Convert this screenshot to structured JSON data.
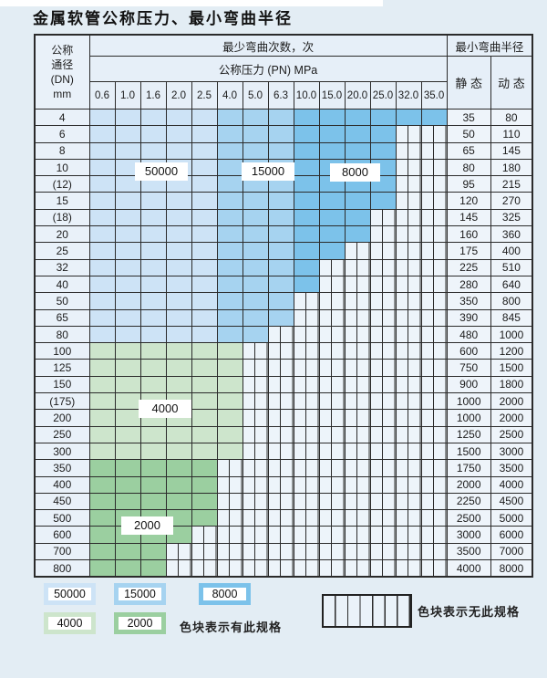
{
  "colors": {
    "cycles_50000": "#cde3f6",
    "cycles_15000": "#a6d3f0",
    "cycles_8000": "#7cc2ea",
    "cycles_4000": "#cde5cc",
    "cycles_2000": "#9bcfa0",
    "no_spec_bg": "#edf4fa",
    "grid_line": "#2b2b2b",
    "page_bg": "#e3edf4"
  },
  "chart_data": {
    "type": "table",
    "title": "金属软管公称压力、最小弯曲半径",
    "header": {
      "dn_lines": [
        "公称",
        "通径",
        "(DN)",
        "mm"
      ],
      "bend_cycles_label": "最少弯曲次数，次",
      "pressure_label": "公称压力 (PN) MPa",
      "radius_label": "最小弯曲半径",
      "static_label": "静 态",
      "dynamic_label": "动 态",
      "pressure_columns": [
        "0.6",
        "1.0",
        "1.6",
        "2.0",
        "2.5",
        "4.0",
        "5.0",
        "6.3",
        "10.0",
        "15.0",
        "20.0",
        "25.0",
        "32.0",
        "35.0"
      ]
    },
    "overlay_labels": [
      "50000",
      "15000",
      "8000",
      "4000",
      "2000"
    ],
    "rows": [
      {
        "dn": "4",
        "cycles": [
          50000,
          50000,
          50000,
          50000,
          50000,
          15000,
          15000,
          15000,
          8000,
          8000,
          8000,
          8000,
          8000,
          8000
        ],
        "static": "35",
        "dynamic": "80"
      },
      {
        "dn": "6",
        "cycles": [
          50000,
          50000,
          50000,
          50000,
          50000,
          15000,
          15000,
          15000,
          8000,
          8000,
          8000,
          8000,
          null,
          null
        ],
        "static": "50",
        "dynamic": "110"
      },
      {
        "dn": "8",
        "cycles": [
          50000,
          50000,
          50000,
          50000,
          50000,
          15000,
          15000,
          15000,
          8000,
          8000,
          8000,
          8000,
          null,
          null
        ],
        "static": "65",
        "dynamic": "145"
      },
      {
        "dn": "10",
        "cycles": [
          50000,
          50000,
          50000,
          50000,
          50000,
          15000,
          15000,
          15000,
          8000,
          8000,
          8000,
          8000,
          null,
          null
        ],
        "static": "80",
        "dynamic": "180"
      },
      {
        "dn": "(12)",
        "cycles": [
          50000,
          50000,
          50000,
          50000,
          50000,
          15000,
          15000,
          15000,
          8000,
          8000,
          8000,
          8000,
          null,
          null
        ],
        "static": "95",
        "dynamic": "215"
      },
      {
        "dn": "15",
        "cycles": [
          50000,
          50000,
          50000,
          50000,
          50000,
          15000,
          15000,
          15000,
          8000,
          8000,
          8000,
          8000,
          null,
          null
        ],
        "static": "120",
        "dynamic": "270"
      },
      {
        "dn": "(18)",
        "cycles": [
          50000,
          50000,
          50000,
          50000,
          50000,
          15000,
          15000,
          15000,
          8000,
          8000,
          8000,
          null,
          null,
          null
        ],
        "static": "145",
        "dynamic": "325"
      },
      {
        "dn": "20",
        "cycles": [
          50000,
          50000,
          50000,
          50000,
          50000,
          15000,
          15000,
          15000,
          8000,
          8000,
          8000,
          null,
          null,
          null
        ],
        "static": "160",
        "dynamic": "360"
      },
      {
        "dn": "25",
        "cycles": [
          50000,
          50000,
          50000,
          50000,
          50000,
          15000,
          15000,
          15000,
          8000,
          8000,
          null,
          null,
          null,
          null
        ],
        "static": "175",
        "dynamic": "400"
      },
      {
        "dn": "32",
        "cycles": [
          50000,
          50000,
          50000,
          50000,
          50000,
          15000,
          15000,
          15000,
          8000,
          null,
          null,
          null,
          null,
          null
        ],
        "static": "225",
        "dynamic": "510"
      },
      {
        "dn": "40",
        "cycles": [
          50000,
          50000,
          50000,
          50000,
          50000,
          15000,
          15000,
          15000,
          8000,
          null,
          null,
          null,
          null,
          null
        ],
        "static": "280",
        "dynamic": "640"
      },
      {
        "dn": "50",
        "cycles": [
          50000,
          50000,
          50000,
          50000,
          50000,
          15000,
          15000,
          15000,
          null,
          null,
          null,
          null,
          null,
          null
        ],
        "static": "350",
        "dynamic": "800"
      },
      {
        "dn": "65",
        "cycles": [
          50000,
          50000,
          50000,
          50000,
          50000,
          15000,
          15000,
          15000,
          null,
          null,
          null,
          null,
          null,
          null
        ],
        "static": "390",
        "dynamic": "845"
      },
      {
        "dn": "80",
        "cycles": [
          50000,
          50000,
          50000,
          50000,
          50000,
          15000,
          15000,
          null,
          null,
          null,
          null,
          null,
          null,
          null
        ],
        "static": "480",
        "dynamic": "1000"
      },
      {
        "dn": "100",
        "cycles": [
          4000,
          4000,
          4000,
          4000,
          4000,
          4000,
          null,
          null,
          null,
          null,
          null,
          null,
          null,
          null
        ],
        "static": "600",
        "dynamic": "1200"
      },
      {
        "dn": "125",
        "cycles": [
          4000,
          4000,
          4000,
          4000,
          4000,
          4000,
          null,
          null,
          null,
          null,
          null,
          null,
          null,
          null
        ],
        "static": "750",
        "dynamic": "1500"
      },
      {
        "dn": "150",
        "cycles": [
          4000,
          4000,
          4000,
          4000,
          4000,
          4000,
          null,
          null,
          null,
          null,
          null,
          null,
          null,
          null
        ],
        "static": "900",
        "dynamic": "1800"
      },
      {
        "dn": "(175)",
        "cycles": [
          4000,
          4000,
          4000,
          4000,
          4000,
          4000,
          null,
          null,
          null,
          null,
          null,
          null,
          null,
          null
        ],
        "static": "1000",
        "dynamic": "2000"
      },
      {
        "dn": "200",
        "cycles": [
          4000,
          4000,
          4000,
          4000,
          4000,
          4000,
          null,
          null,
          null,
          null,
          null,
          null,
          null,
          null
        ],
        "static": "1000",
        "dynamic": "2000"
      },
      {
        "dn": "250",
        "cycles": [
          4000,
          4000,
          4000,
          4000,
          4000,
          4000,
          null,
          null,
          null,
          null,
          null,
          null,
          null,
          null
        ],
        "static": "1250",
        "dynamic": "2500"
      },
      {
        "dn": "300",
        "cycles": [
          4000,
          4000,
          4000,
          4000,
          4000,
          4000,
          null,
          null,
          null,
          null,
          null,
          null,
          null,
          null
        ],
        "static": "1500",
        "dynamic": "3000"
      },
      {
        "dn": "350",
        "cycles": [
          2000,
          2000,
          2000,
          2000,
          2000,
          null,
          null,
          null,
          null,
          null,
          null,
          null,
          null,
          null
        ],
        "static": "1750",
        "dynamic": "3500"
      },
      {
        "dn": "400",
        "cycles": [
          2000,
          2000,
          2000,
          2000,
          2000,
          null,
          null,
          null,
          null,
          null,
          null,
          null,
          null,
          null
        ],
        "static": "2000",
        "dynamic": "4000"
      },
      {
        "dn": "450",
        "cycles": [
          2000,
          2000,
          2000,
          2000,
          2000,
          null,
          null,
          null,
          null,
          null,
          null,
          null,
          null,
          null
        ],
        "static": "2250",
        "dynamic": "4500"
      },
      {
        "dn": "500",
        "cycles": [
          2000,
          2000,
          2000,
          2000,
          2000,
          null,
          null,
          null,
          null,
          null,
          null,
          null,
          null,
          null
        ],
        "static": "2500",
        "dynamic": "5000"
      },
      {
        "dn": "600",
        "cycles": [
          2000,
          2000,
          2000,
          2000,
          null,
          null,
          null,
          null,
          null,
          null,
          null,
          null,
          null,
          null
        ],
        "static": "3000",
        "dynamic": "6000"
      },
      {
        "dn": "700",
        "cycles": [
          2000,
          2000,
          2000,
          null,
          null,
          null,
          null,
          null,
          null,
          null,
          null,
          null,
          null,
          null
        ],
        "static": "3500",
        "dynamic": "7000"
      },
      {
        "dn": "800",
        "cycles": [
          2000,
          2000,
          2000,
          null,
          null,
          null,
          null,
          null,
          null,
          null,
          null,
          null,
          null,
          null
        ],
        "static": "4000",
        "dynamic": "8000"
      }
    ],
    "legend": {
      "has_spec_items": [
        "50000",
        "15000",
        "8000",
        "4000",
        "2000"
      ],
      "has_spec_text": "色块表示有此规格",
      "no_spec_text": "色块表示无此规格"
    }
  }
}
